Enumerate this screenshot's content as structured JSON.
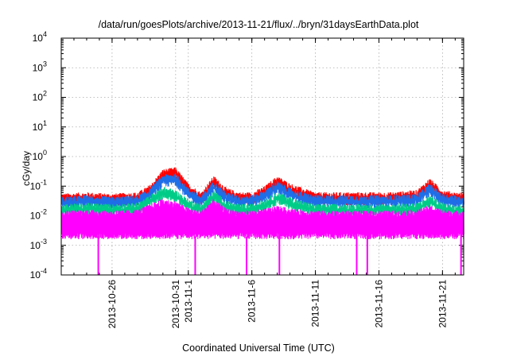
{
  "chart_data": {
    "type": "line",
    "title": "/data/run/goesPlots/archive/2013-11-21/flux/../bryn/31daysEarthData.plot",
    "xlabel": "Coordinated Universal Time (UTC)",
    "ylabel": "cGy/day",
    "yscale": "log",
    "ylim": [
      0.0001,
      10000
    ],
    "xlim": [
      "2013-10-22T00:00",
      "2013-11-22T16:00"
    ],
    "grid": true,
    "y_ticks": [
      {
        "base": "10",
        "exp": "-4"
      },
      {
        "base": "10",
        "exp": "-3"
      },
      {
        "base": "10",
        "exp": "-2"
      },
      {
        "base": "10",
        "exp": "-1"
      },
      {
        "base": "10",
        "exp": "0"
      },
      {
        "base": "10",
        "exp": "1"
      },
      {
        "base": "10",
        "exp": "2"
      },
      {
        "base": "10",
        "exp": "3"
      },
      {
        "base": "10",
        "exp": "4"
      }
    ],
    "x_ticks": [
      {
        "date": "2013-10-26",
        "label": "2013-10-26"
      },
      {
        "date": "2013-10-31",
        "label": "2013-10-31"
      },
      {
        "date": "2013-11-01",
        "label": "2013-11-1"
      },
      {
        "date": "2013-11-06",
        "label": "2013-11-6"
      },
      {
        "date": "2013-11-11",
        "label": "2013-11-11"
      },
      {
        "date": "2013-11-16",
        "label": "2013-11-16"
      },
      {
        "date": "2013-11-21",
        "label": "2013-11-21"
      }
    ],
    "series": [
      {
        "color": "#ff0000",
        "x": [
          "2013-10-22",
          "2013-10-24",
          "2013-10-26",
          "2013-10-28",
          "2013-10-29",
          "2013-10-30",
          "2013-10-31",
          "2013-11-01",
          "2013-11-02",
          "2013-11-03",
          "2013-11-04",
          "2013-11-05",
          "2013-11-06",
          "2013-11-07",
          "2013-11-08",
          "2013-11-09",
          "2013-11-10",
          "2013-11-11",
          "2013-11-13",
          "2013-11-15",
          "2013-11-17",
          "2013-11-19",
          "2013-11-20",
          "2013-11-21",
          "2013-11-22"
        ],
        "values": [
          0.045,
          0.05,
          0.045,
          0.05,
          0.09,
          0.3,
          0.35,
          0.1,
          0.05,
          0.18,
          0.07,
          0.05,
          0.05,
          0.08,
          0.18,
          0.1,
          0.07,
          0.05,
          0.05,
          0.05,
          0.05,
          0.06,
          0.15,
          0.06,
          0.05
        ]
      },
      {
        "color": "#1e6ee8",
        "x": [
          "2013-10-22",
          "2013-10-24",
          "2013-10-26",
          "2013-10-28",
          "2013-10-29",
          "2013-10-30",
          "2013-10-31",
          "2013-11-01",
          "2013-11-02",
          "2013-11-03",
          "2013-11-04",
          "2013-11-05",
          "2013-11-06",
          "2013-11-07",
          "2013-11-08",
          "2013-11-09",
          "2013-11-10",
          "2013-11-11",
          "2013-11-13",
          "2013-11-15",
          "2013-11-17",
          "2013-11-19",
          "2013-11-20",
          "2013-11-21",
          "2013-11-22"
        ],
        "values": [
          0.035,
          0.04,
          0.035,
          0.04,
          0.07,
          0.2,
          0.22,
          0.07,
          0.04,
          0.12,
          0.05,
          0.04,
          0.04,
          0.06,
          0.12,
          0.07,
          0.05,
          0.04,
          0.04,
          0.04,
          0.04,
          0.045,
          0.1,
          0.045,
          0.04
        ]
      },
      {
        "color": "#00cc88",
        "x": [
          "2013-10-22",
          "2013-10-24",
          "2013-10-26",
          "2013-10-28",
          "2013-10-29",
          "2013-10-30",
          "2013-10-31",
          "2013-11-01",
          "2013-11-02",
          "2013-11-03",
          "2013-11-04",
          "2013-11-05",
          "2013-11-06",
          "2013-11-07",
          "2013-11-08",
          "2013-11-09",
          "2013-11-10",
          "2013-11-11",
          "2013-11-13",
          "2013-11-15",
          "2013-11-17",
          "2013-11-19",
          "2013-11-20",
          "2013-11-21",
          "2013-11-22"
        ],
        "values": [
          0.02,
          0.022,
          0.02,
          0.022,
          0.04,
          0.08,
          0.06,
          0.03,
          0.02,
          0.06,
          0.025,
          0.02,
          0.02,
          0.03,
          0.05,
          0.035,
          0.025,
          0.02,
          0.02,
          0.02,
          0.02,
          0.022,
          0.04,
          0.022,
          0.02
        ]
      },
      {
        "color": "#ff00ff",
        "x": [
          "2013-10-22",
          "2013-10-24",
          "2013-10-26",
          "2013-10-28",
          "2013-10-29",
          "2013-10-30",
          "2013-10-31",
          "2013-11-01",
          "2013-11-02",
          "2013-11-03",
          "2013-11-04",
          "2013-11-05",
          "2013-11-06",
          "2013-11-07",
          "2013-11-08",
          "2013-11-09",
          "2013-11-10",
          "2013-11-11",
          "2013-11-13",
          "2013-11-15",
          "2013-11-17",
          "2013-11-19",
          "2013-11-20",
          "2013-11-21",
          "2013-11-22"
        ],
        "values": [
          0.012,
          0.013,
          0.012,
          0.013,
          0.02,
          0.03,
          0.025,
          0.015,
          0.012,
          0.03,
          0.014,
          0.012,
          0.012,
          0.014,
          0.018,
          0.014,
          0.013,
          0.012,
          0.012,
          0.012,
          0.012,
          0.013,
          0.018,
          0.013,
          0.012
        ],
        "floor": 0.002
      }
    ],
    "dropouts": [
      "2013-10-24T22:00",
      "2013-11-01T13:00",
      "2013-11-05T14:00",
      "2013-11-08T04:00",
      "2013-11-14T06:00",
      "2013-11-15T02:00",
      "2013-11-22T11:00"
    ]
  }
}
